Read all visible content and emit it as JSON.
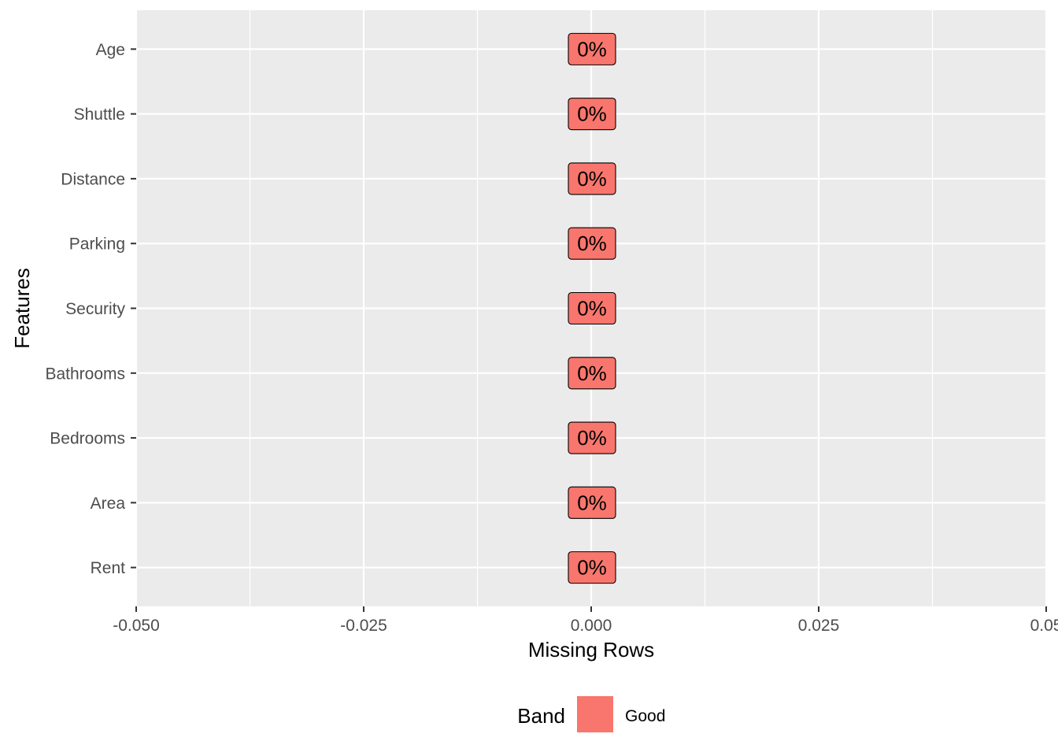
{
  "colors": {
    "panel_background": "#ebebeb",
    "grid_line": "#ffffff",
    "band_good": "#f8766d",
    "tick_text": "#4d4d4d"
  },
  "chart_data": {
    "type": "bar",
    "orientation": "horizontal",
    "xlabel": "Missing Rows",
    "ylabel": "Features",
    "xlim": [
      -0.05,
      0.05
    ],
    "xticks": [
      -0.05,
      -0.025,
      0.0,
      0.025,
      0.05
    ],
    "xtick_labels": [
      "-0.050",
      "-0.025",
      "0.000",
      "0.025",
      "0.05"
    ],
    "grid": true,
    "legend_position": "bottom",
    "categories": [
      "Age",
      "Shuttle",
      "Distance",
      "Parking",
      "Security",
      "Bathrooms",
      "Bedrooms",
      "Area",
      "Rent"
    ],
    "values": [
      0,
      0,
      0,
      0,
      0,
      0,
      0,
      0,
      0
    ],
    "data_labels": [
      "0%",
      "0%",
      "0%",
      "0%",
      "0%",
      "0%",
      "0%",
      "0%",
      "0%"
    ],
    "bands": [
      "Good",
      "Good",
      "Good",
      "Good",
      "Good",
      "Good",
      "Good",
      "Good",
      "Good"
    ],
    "legend": {
      "title": "Band",
      "entries": [
        {
          "label": "Good",
          "color": "#f8766d"
        }
      ]
    }
  }
}
